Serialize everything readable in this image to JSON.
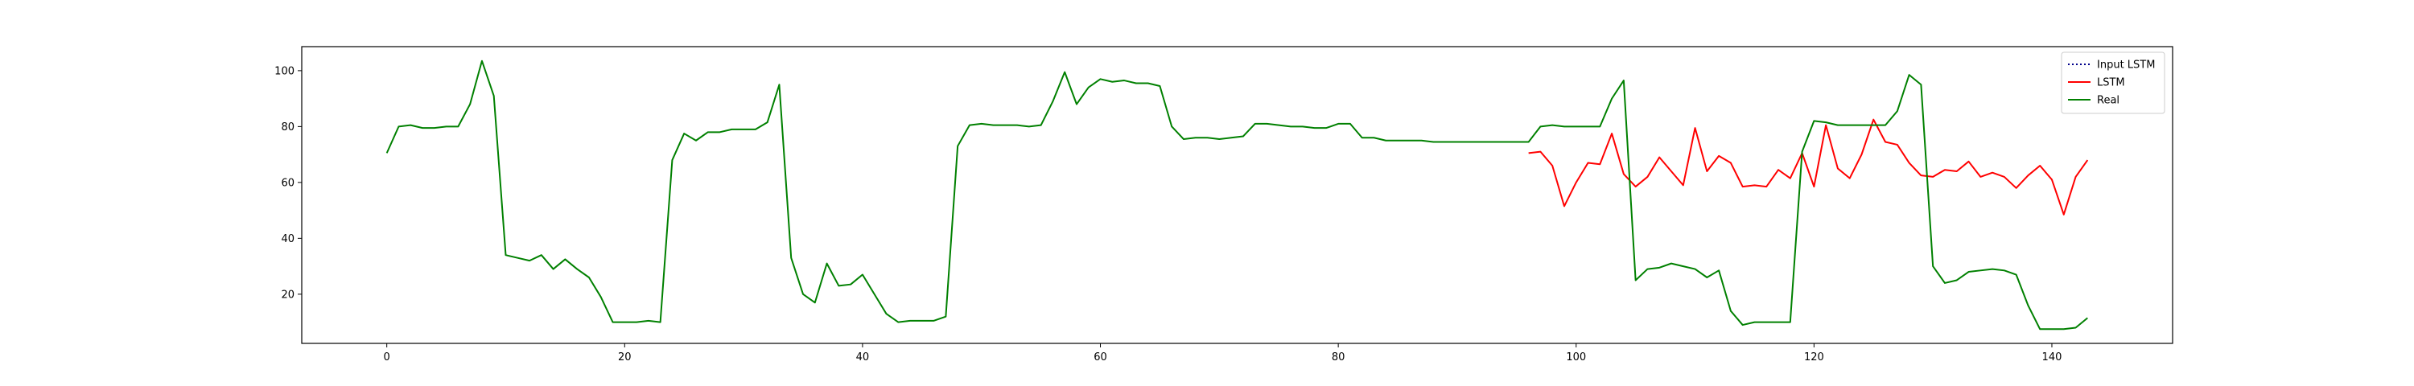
{
  "chart_data": {
    "type": "line",
    "title": "",
    "xlabel": "",
    "ylabel": "",
    "xlim": [
      -7.15,
      150.15
    ],
    "ylim": [
      2.4,
      108.6
    ],
    "xticks": [
      0,
      20,
      40,
      60,
      80,
      100,
      120,
      140
    ],
    "yticks": [
      20,
      40,
      60,
      80,
      100
    ],
    "grid": false,
    "legend": {
      "placement": "top-right",
      "entries": [
        "Input LSTM",
        "LSTM",
        "Real"
      ]
    },
    "series": [
      {
        "name": "Input LSTM",
        "color": "#00008b",
        "style": "dotted",
        "x": [],
        "values": []
      },
      {
        "name": "LSTM",
        "color": "#ff0000",
        "style": "solid",
        "x": [
          96,
          97,
          98,
          99,
          100,
          101,
          102,
          103,
          104,
          105,
          106,
          107,
          108,
          109,
          110,
          111,
          112,
          113,
          114,
          115,
          116,
          117,
          118,
          119,
          120,
          121,
          122,
          123,
          124,
          125,
          126,
          127,
          128,
          129,
          130,
          131,
          132,
          133,
          134,
          135,
          136,
          137,
          138,
          139,
          140,
          141,
          142,
          143
        ],
        "values": [
          70.5,
          71,
          66,
          51.5,
          60,
          67,
          66.5,
          77.5,
          63,
          58.5,
          62,
          69,
          64,
          59,
          79.5,
          64,
          69.5,
          67,
          58.5,
          59,
          58.5,
          64.5,
          61.5,
          70.5,
          58.5,
          80.5,
          65,
          61.5,
          70,
          82.5,
          74.5,
          73.5,
          67,
          62.5,
          62,
          64.5,
          64,
          67.5,
          62,
          63.5,
          62,
          58,
          62.5,
          66,
          61,
          48.5,
          62,
          68
        ]
      },
      {
        "name": "Real",
        "color": "#008000",
        "style": "solid",
        "x": [
          0,
          1,
          2,
          3,
          4,
          5,
          6,
          7,
          8,
          9,
          10,
          11,
          12,
          13,
          14,
          15,
          16,
          17,
          18,
          19,
          20,
          21,
          22,
          23,
          24,
          25,
          26,
          27,
          28,
          29,
          30,
          31,
          32,
          33,
          34,
          35,
          36,
          37,
          38,
          39,
          40,
          41,
          42,
          43,
          44,
          45,
          46,
          47,
          48,
          49,
          50,
          51,
          52,
          53,
          54,
          55,
          56,
          57,
          58,
          59,
          60,
          61,
          62,
          63,
          64,
          65,
          66,
          67,
          68,
          69,
          70,
          71,
          72,
          73,
          74,
          75,
          76,
          77,
          78,
          79,
          80,
          81,
          82,
          83,
          84,
          85,
          86,
          87,
          88,
          89,
          90,
          91,
          92,
          93,
          94,
          95,
          96,
          97,
          98,
          99,
          100,
          101,
          102,
          103,
          104,
          105,
          106,
          107,
          108,
          109,
          110,
          111,
          112,
          113,
          114,
          115,
          116,
          117,
          118,
          119,
          120,
          121,
          122,
          123,
          124,
          125,
          126,
          127,
          128,
          129,
          130,
          131,
          132,
          133,
          134,
          135,
          136,
          137,
          138,
          139,
          140,
          141,
          142,
          143
        ],
        "values": [
          70.5,
          80,
          80.5,
          79.5,
          79.5,
          80,
          80,
          88,
          103.5,
          91,
          34,
          33,
          32,
          34,
          29,
          32.5,
          29,
          26,
          19,
          10,
          10,
          10,
          10.5,
          10,
          68,
          77.5,
          75,
          78,
          78,
          79,
          79,
          79,
          81.5,
          95,
          33,
          20,
          17,
          31,
          23,
          23.5,
          27,
          20,
          13,
          10,
          10.5,
          10.5,
          10.5,
          12,
          73,
          80.5,
          81,
          80.5,
          80.5,
          80.5,
          80,
          80.5,
          89,
          99.5,
          88,
          94,
          97,
          96,
          96.5,
          95.5,
          95.5,
          94.5,
          80,
          75.5,
          76,
          76,
          75.5,
          76,
          76.5,
          81,
          81,
          80.5,
          80,
          80,
          79.5,
          79.5,
          81,
          81,
          76,
          76,
          75,
          75,
          75,
          75,
          74.5,
          74.5,
          74.5,
          74.5,
          74.5,
          74.5,
          74.5,
          74.5,
          74.5,
          80,
          80.5,
          80,
          80,
          80,
          80,
          90,
          96.5,
          25,
          29,
          29.5,
          31,
          30,
          29,
          26,
          28.5,
          14,
          9,
          10,
          10,
          10,
          10,
          71,
          82,
          81.5,
          80.5,
          80.5,
          80.5,
          80.5,
          80.5,
          85.5,
          98.5,
          95,
          30,
          24,
          25,
          28,
          28.5,
          29,
          28.5,
          27,
          16,
          7.5,
          7.5,
          7.5,
          8,
          11.5
        ]
      }
    ]
  }
}
